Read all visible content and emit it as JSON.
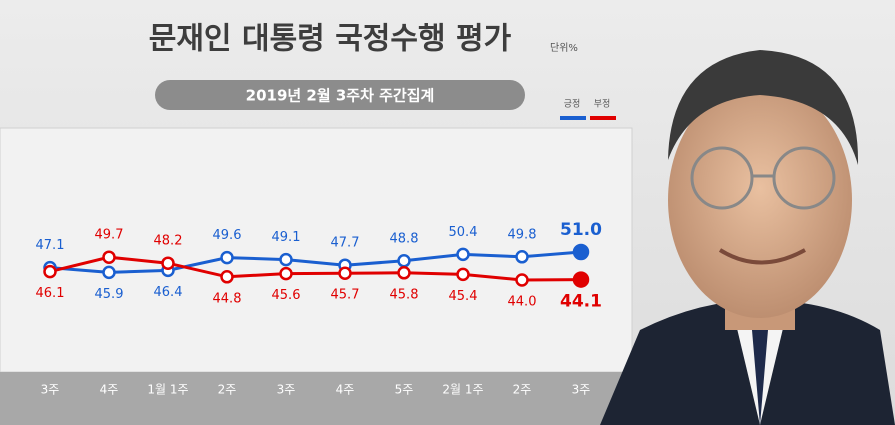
{
  "chart_data": {
    "type": "line",
    "title": "문재인 대통령 국정수행 평가",
    "unit": "단위%",
    "subtitle": "2019년 2월 3주차 주간집계",
    "categories": [
      "3주",
      "4주",
      "1월 1주",
      "2주",
      "3주",
      "4주",
      "5주",
      "2월 1주",
      "2주",
      "3주"
    ],
    "series": [
      {
        "name": "긍정",
        "color": "#1a5fd0",
        "values": [
          47.1,
          45.9,
          46.4,
          49.6,
          49.1,
          47.7,
          48.8,
          50.4,
          49.8,
          51.0
        ],
        "value_labels": [
          "47.1",
          "45.9",
          "46.4",
          "49.6",
          "49.1",
          "47.7",
          "48.8",
          "50.4",
          "49.8",
          "51.0"
        ]
      },
      {
        "name": "부정",
        "color": "#e00000",
        "values": [
          46.1,
          49.7,
          48.2,
          44.8,
          45.6,
          45.7,
          45.8,
          45.4,
          44.0,
          44.1
        ],
        "value_labels": [
          "46.1",
          "49.7",
          "48.2",
          "44.8",
          "45.6",
          "45.7",
          "45.8",
          "45.4",
          "44.0",
          "44.1"
        ]
      }
    ]
  }
}
